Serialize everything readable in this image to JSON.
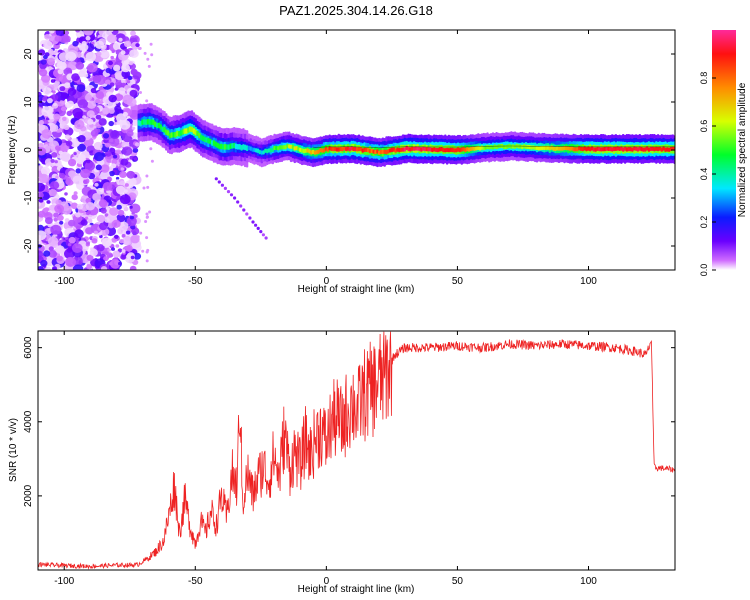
{
  "title": "PAZ1.2025.304.14.26.G18",
  "chart_data": [
    {
      "type": "heatmap",
      "title": "PAZ1.2025.304.14.26.G18",
      "xlabel": "Height of straight line (km)",
      "ylabel": "Frequency (Hz)",
      "xlim": [
        -110,
        133
      ],
      "ylim": [
        -25,
        25
      ],
      "xticks": [
        -100,
        -50,
        0,
        50,
        100
      ],
      "yticks": [
        -20,
        -10,
        0,
        10,
        20
      ],
      "grid": false,
      "colorbar": {
        "label": "Normalized spectral amplitude",
        "range": [
          0,
          1
        ],
        "ticks": [
          0.0,
          0.2,
          0.4,
          0.6,
          0.8
        ],
        "tick_labels": [
          "0.0",
          "0.2",
          "0.4",
          "0.6",
          "0.8"
        ],
        "stops": [
          "#ffffff",
          "#cf6cff",
          "#6a00ff",
          "#0a1cff",
          "#00e8ff",
          "#00ff2a",
          "#d8ff00",
          "#ff8c00",
          "#ff1010",
          "#ff2a9a"
        ]
      },
      "noise_region_x": [
        -110,
        -72
      ],
      "ridge": {
        "x": [
          -72,
          -68,
          -64,
          -60,
          -56,
          -52,
          -48,
          -44,
          -40,
          -35,
          -30,
          -25,
          -20,
          -15,
          -10,
          -5,
          0,
          10,
          20,
          30,
          50,
          60,
          70,
          80,
          90,
          100,
          110,
          120,
          133
        ],
        "y": [
          5.5,
          6.0,
          5.0,
          3.0,
          3.5,
          4.5,
          2.5,
          1.5,
          0.5,
          0.8,
          0.3,
          -0.5,
          0.3,
          0.8,
          0.0,
          -0.5,
          0.2,
          0.3,
          -0.5,
          0.3,
          0.0,
          0.5,
          0.8,
          0.5,
          0.3,
          0.2,
          0.2,
          0.2,
          0.2
        ],
        "amp": [
          0.4,
          0.5,
          0.42,
          0.5,
          0.52,
          0.62,
          0.5,
          0.42,
          0.5,
          0.4,
          0.32,
          0.35,
          0.5,
          0.58,
          0.62,
          0.72,
          0.86,
          0.9,
          0.8,
          0.93,
          0.88,
          0.55,
          0.55,
          0.6,
          0.72,
          0.92,
          0.92,
          0.92,
          0.88
        ]
      },
      "ghost_trace": {
        "x": [
          -42,
          -35,
          -28,
          -22
        ],
        "y": [
          -6,
          -10,
          -15,
          -19
        ]
      }
    },
    {
      "type": "line",
      "xlabel": "Height of straight line (km)",
      "ylabel": "SNR (10 * v/v)",
      "xlim": [
        -110,
        133
      ],
      "ylim": [
        0,
        6450
      ],
      "xticks": [
        -100,
        -50,
        0,
        50,
        100
      ],
      "yticks": [
        2000,
        4000,
        6000
      ],
      "color": "#ee2222",
      "grid": false,
      "series": [
        {
          "name": "SNR",
          "x": [
            -110,
            -100,
            -90,
            -80,
            -72,
            -68,
            -65,
            -62,
            -60,
            -58,
            -56,
            -54,
            -52,
            -50,
            -48,
            -46,
            -44,
            -42,
            -40,
            -38,
            -36,
            -34,
            -33,
            -32,
            -30,
            -28,
            -26,
            -24,
            -22,
            -20,
            -18,
            -16,
            -14,
            -12,
            -10,
            -8,
            -6,
            -4,
            -2,
            0,
            2,
            4,
            6,
            8,
            10,
            12,
            14,
            16,
            18,
            20,
            22,
            24,
            26,
            28,
            30,
            40,
            50,
            60,
            70,
            80,
            90,
            100,
            110,
            118,
            122,
            124,
            125,
            126,
            128,
            133
          ],
          "y": [
            150,
            120,
            100,
            130,
            140,
            320,
            500,
            800,
            1500,
            2300,
            1000,
            1900,
            1200,
            700,
            1300,
            1000,
            1600,
            1200,
            2000,
            1400,
            2600,
            2200,
            4800,
            1800,
            2600,
            2000,
            2500,
            2800,
            2400,
            3100,
            2500,
            3700,
            2700,
            3200,
            2800,
            3500,
            3100,
            3600,
            3800,
            3400,
            4000,
            4100,
            3900,
            4300,
            4500,
            4300,
            4700,
            4800,
            4900,
            5100,
            5200,
            5500,
            5800,
            5900,
            6000,
            6000,
            6050,
            6000,
            6100,
            6050,
            6100,
            6050,
            6000,
            5900,
            5800,
            6200,
            2800,
            2750,
            2750,
            2700
          ]
        }
      ]
    }
  ]
}
